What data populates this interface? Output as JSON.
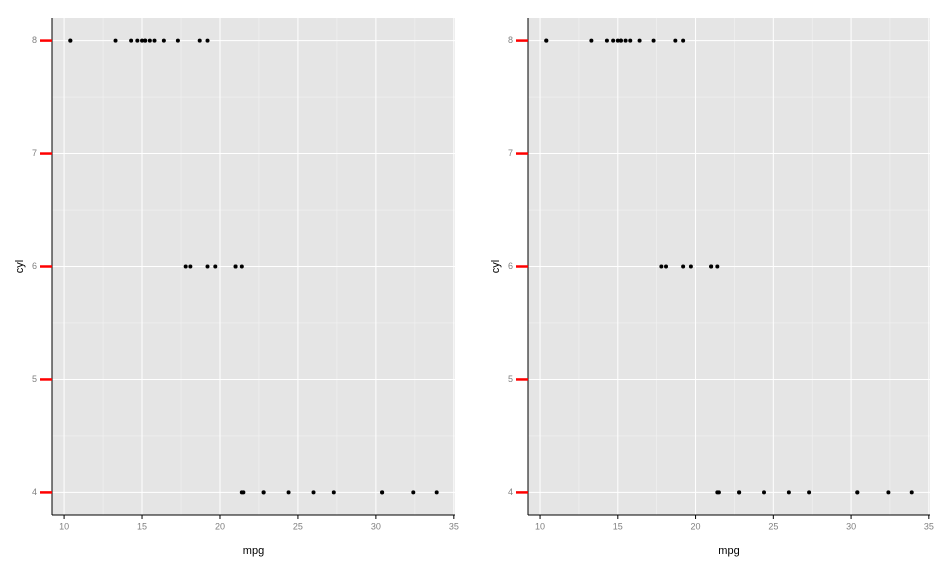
{
  "chart_data": [
    {
      "type": "scatter",
      "x_label": "mpg",
      "y_label": "cyl",
      "x": [
        21.0,
        21.0,
        22.8,
        21.4,
        18.7,
        18.1,
        14.3,
        24.4,
        22.8,
        19.2,
        17.8,
        16.4,
        17.3,
        15.2,
        10.4,
        10.4,
        14.7,
        32.4,
        30.4,
        33.9,
        21.5,
        15.5,
        15.2,
        13.3,
        19.2,
        27.3,
        26.0,
        30.4,
        15.8,
        19.7,
        15.0,
        21.4
      ],
      "y": [
        6,
        6,
        4,
        6,
        8,
        6,
        8,
        4,
        4,
        6,
        6,
        8,
        8,
        8,
        8,
        8,
        8,
        4,
        4,
        4,
        4,
        8,
        8,
        8,
        8,
        4,
        4,
        4,
        8,
        6,
        8,
        4
      ],
      "color": "#000000",
      "xlim": [
        9.225,
        35.075
      ],
      "ylim": [
        3.8,
        8.2
      ],
      "xticks": [
        10,
        15,
        20,
        25,
        30,
        35
      ],
      "yticks": [
        4,
        5,
        6,
        7,
        8
      ],
      "grid": true,
      "ytick_color": "#ff0000"
    },
    {
      "type": "scatter",
      "x_label": "mpg",
      "y_label": "cyl",
      "x": [
        21.0,
        21.0,
        22.8,
        21.4,
        18.7,
        18.1,
        14.3,
        24.4,
        22.8,
        19.2,
        17.8,
        16.4,
        17.3,
        15.2,
        10.4,
        10.4,
        14.7,
        32.4,
        30.4,
        33.9,
        21.5,
        15.5,
        15.2,
        13.3,
        19.2,
        27.3,
        26.0,
        30.4,
        15.8,
        19.7,
        15.0,
        21.4
      ],
      "y": [
        6,
        6,
        4,
        6,
        8,
        6,
        8,
        4,
        4,
        6,
        6,
        8,
        8,
        8,
        8,
        8,
        8,
        4,
        4,
        4,
        4,
        8,
        8,
        8,
        8,
        4,
        4,
        4,
        8,
        6,
        8,
        4
      ],
      "color": "#000000",
      "xlim": [
        9.225,
        35.075
      ],
      "ylim": [
        3.8,
        8.2
      ],
      "xticks": [
        10,
        15,
        20,
        25,
        30,
        35
      ],
      "yticks": [
        4,
        5,
        6,
        7,
        8
      ],
      "grid": true,
      "ytick_color": "#ff0000"
    }
  ]
}
